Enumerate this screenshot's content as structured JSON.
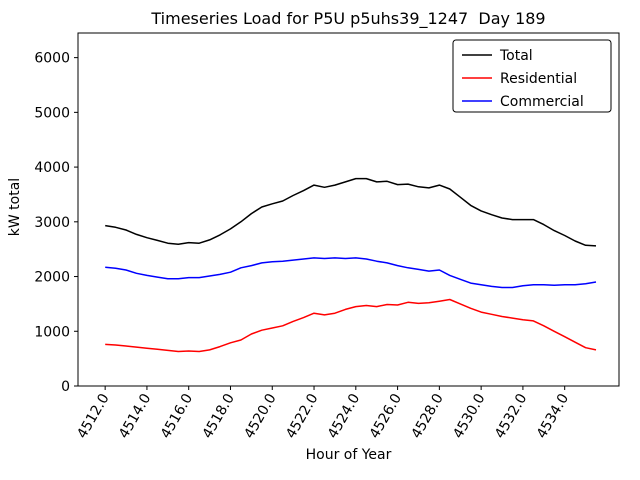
{
  "chart_data": {
    "type": "line",
    "title": "Timeseries Load for P5U p5uhs39_1247  Day 189",
    "xlabel": "Hour of Year",
    "ylabel": "kW total",
    "grid": false,
    "legend_position": "upper right",
    "xlim": [
      4510.7,
      4536.6
    ],
    "ylim": [
      0,
      6450
    ],
    "xticks": [
      4512,
      4514,
      4516,
      4518,
      4520,
      4522,
      4524,
      4526,
      4528,
      4530,
      4532,
      4534
    ],
    "xtick_labels": [
      "4512.0",
      "4514.0",
      "4516.0",
      "4518.0",
      "4520.0",
      "4522.0",
      "4524.0",
      "4526.0",
      "4528.0",
      "4530.0",
      "4532.0",
      "4534.0"
    ],
    "yticks": [
      0,
      1000,
      2000,
      3000,
      4000,
      5000,
      6000
    ],
    "ytick_labels": [
      "0",
      "1000",
      "2000",
      "3000",
      "4000",
      "5000",
      "6000"
    ],
    "x": [
      4512.0,
      4512.5,
      4513.0,
      4513.5,
      4514.0,
      4514.5,
      4515.0,
      4515.5,
      4516.0,
      4516.5,
      4517.0,
      4517.5,
      4518.0,
      4518.5,
      4519.0,
      4519.5,
      4520.0,
      4520.5,
      4521.0,
      4521.5,
      4522.0,
      4522.5,
      4523.0,
      4523.5,
      4524.0,
      4524.5,
      4525.0,
      4525.5,
      4526.0,
      4526.5,
      4527.0,
      4527.5,
      4528.0,
      4528.5,
      4529.0,
      4529.5,
      4530.0,
      4530.5,
      4531.0,
      4531.5,
      4532.0,
      4532.5,
      4533.0,
      4533.5,
      4534.0,
      4534.5,
      4535.0,
      4535.5
    ],
    "series": [
      {
        "name": "Total",
        "color": "#000000",
        "values": [
          2930,
          2900,
          2850,
          2770,
          2710,
          2660,
          2610,
          2590,
          2620,
          2610,
          2670,
          2760,
          2870,
          3000,
          3150,
          3270,
          3330,
          3380,
          3480,
          3570,
          3670,
          3630,
          3670,
          3730,
          3790,
          3790,
          3730,
          3740,
          3680,
          3690,
          3640,
          3620,
          3670,
          3600,
          3450,
          3300,
          3200,
          3130,
          3070,
          3040,
          3040,
          3040,
          2950,
          2840,
          2750,
          2650,
          2570,
          2560
        ]
      },
      {
        "name": "Residential",
        "color": "#ff0000",
        "values": [
          760,
          750,
          730,
          710,
          690,
          670,
          650,
          630,
          640,
          630,
          660,
          720,
          790,
          840,
          950,
          1020,
          1060,
          1100,
          1180,
          1250,
          1330,
          1300,
          1330,
          1400,
          1450,
          1470,
          1450,
          1490,
          1480,
          1530,
          1510,
          1520,
          1550,
          1580,
          1500,
          1420,
          1350,
          1310,
          1270,
          1240,
          1210,
          1190,
          1100,
          1000,
          900,
          800,
          700,
          660
        ]
      },
      {
        "name": "Commercial",
        "color": "#0000ff",
        "values": [
          2170,
          2150,
          2120,
          2060,
          2020,
          1990,
          1960,
          1960,
          1980,
          1980,
          2010,
          2040,
          2080,
          2160,
          2200,
          2250,
          2270,
          2280,
          2300,
          2320,
          2340,
          2330,
          2340,
          2330,
          2340,
          2320,
          2280,
          2250,
          2200,
          2160,
          2130,
          2100,
          2120,
          2020,
          1950,
          1880,
          1850,
          1820,
          1800,
          1800,
          1830,
          1850,
          1850,
          1840,
          1850,
          1850,
          1870,
          1900
        ]
      }
    ]
  }
}
